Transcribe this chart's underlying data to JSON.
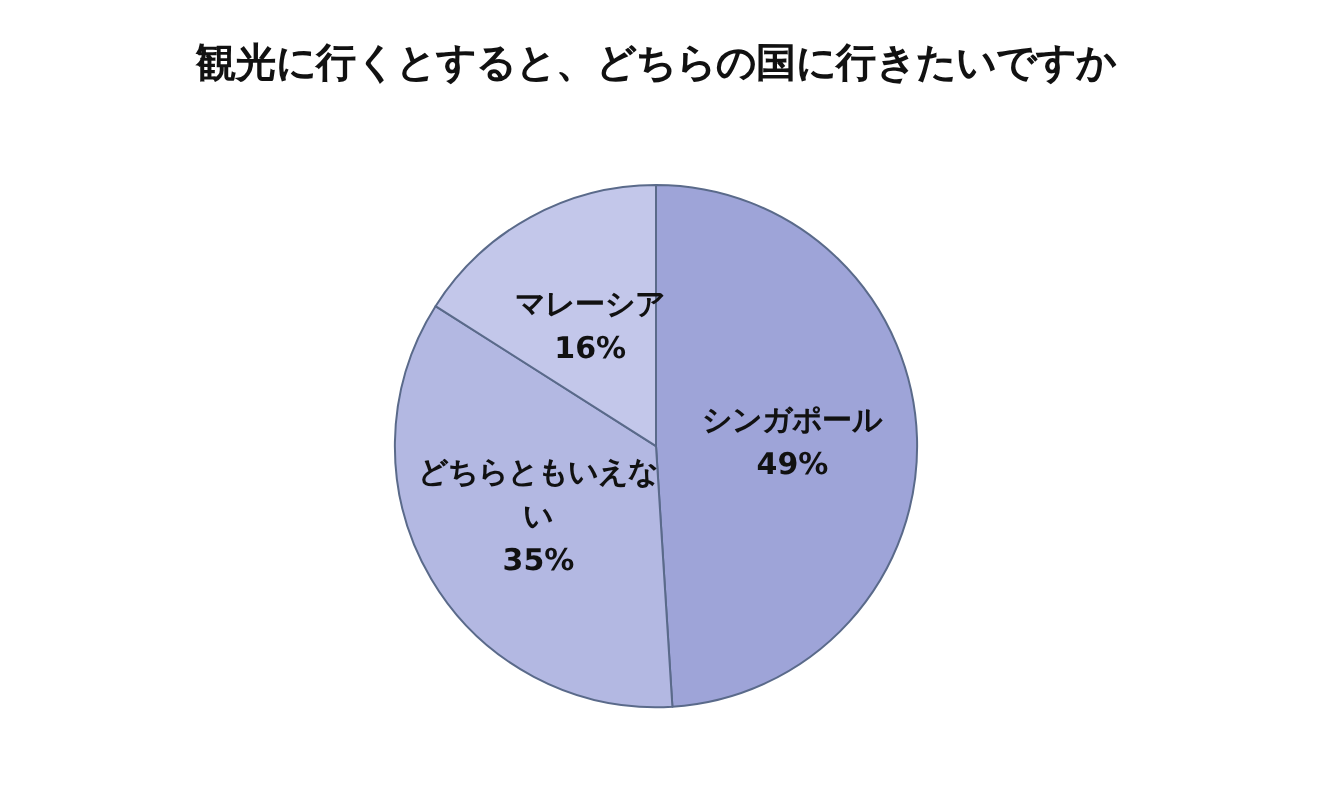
{
  "chart_data": {
    "type": "pie",
    "title": "観光に行くとすると、どちらの国に行きたいですか",
    "categories": [
      "シンガポール",
      "どちらともいえない",
      "マレーシア"
    ],
    "values": [
      49,
      35,
      16
    ],
    "colors": [
      "#9ea4d8",
      "#b3b8e2",
      "#c3c7ea"
    ],
    "value_labels": [
      "49%",
      "35%",
      "16%"
    ],
    "legend": false
  }
}
